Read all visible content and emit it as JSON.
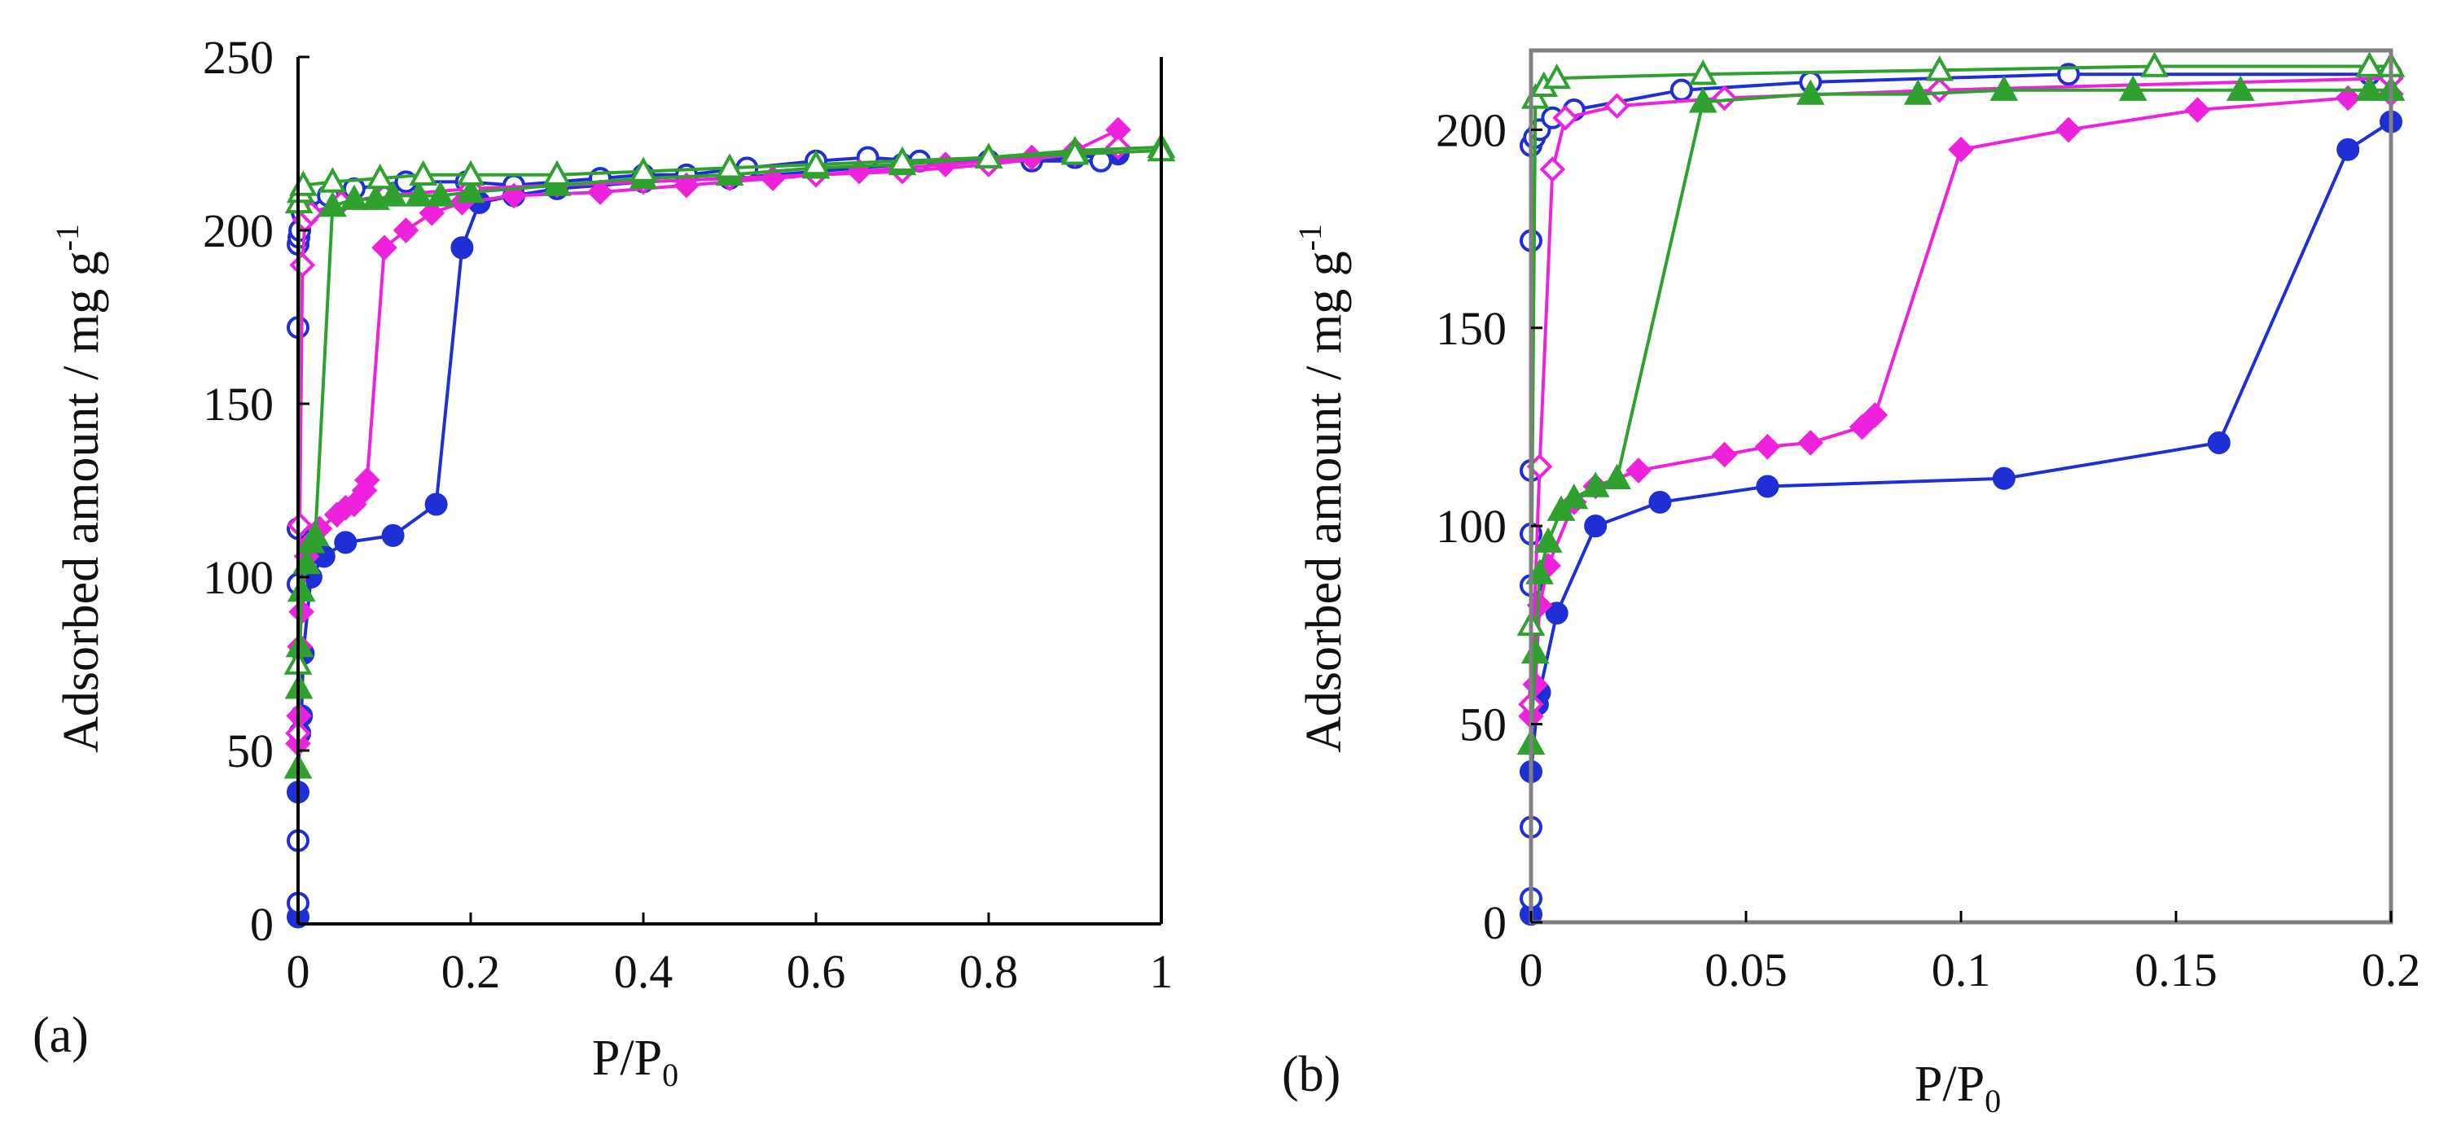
{
  "chart_data": [
    {
      "panel": "(a)",
      "type": "line",
      "ylabel": "Adsorbed amount / mg g",
      "ylabel_sup": "-1",
      "xlabel_main": "P/P",
      "xlabel_sub": "0",
      "xlim": [
        0,
        1
      ],
      "ylim": [
        0,
        250
      ],
      "xticks": [
        "0",
        "0.2",
        "0.4",
        "0.6",
        "0.8",
        "1"
      ],
      "xtick_values": [
        0,
        0.2,
        0.4,
        0.6,
        0.8,
        1
      ],
      "yticks": [
        "0",
        "50",
        "100",
        "150",
        "200",
        "250"
      ],
      "ytick_values": [
        0,
        50,
        100,
        150,
        200,
        250
      ],
      "framed": false,
      "series": [
        {
          "color": "#1f2fd6",
          "marker": "circle",
          "filled": true,
          "points": [
            [
              0,
              2
            ],
            [
              0,
              38
            ],
            [
              0.002,
              55
            ],
            [
              0.004,
              60
            ],
            [
              0.006,
              78
            ],
            [
              0.015,
              100
            ],
            [
              0.03,
              106
            ],
            [
              0.055,
              110
            ],
            [
              0.11,
              112
            ],
            [
              0.16,
              121
            ],
            [
              0.19,
              195
            ],
            [
              0.21,
              208
            ],
            [
              0.25,
              210
            ],
            [
              0.3,
              212
            ],
            [
              0.4,
              214
            ],
            [
              0.5,
              215
            ],
            [
              0.6,
              217
            ],
            [
              0.7,
              219
            ],
            [
              0.8,
              220
            ],
            [
              0.9,
              221
            ],
            [
              0.95,
              222
            ]
          ]
        },
        {
          "color": "#1f2fd6",
          "marker": "circle",
          "filled": false,
          "points": [
            [
              0,
              6
            ],
            [
              0,
              24
            ],
            [
              0,
              98
            ],
            [
              0,
              114
            ],
            [
              0,
              172
            ],
            [
              0,
              196
            ],
            [
              0.001,
              198
            ],
            [
              0.002,
              200
            ],
            [
              0.005,
              205
            ],
            [
              0.01,
              206
            ],
            [
              0.035,
              210
            ],
            [
              0.065,
              212
            ],
            [
              0.125,
              214
            ],
            [
              0.195,
              214
            ],
            [
              0.25,
              213
            ],
            [
              0.35,
              215
            ],
            [
              0.4,
              216
            ],
            [
              0.45,
              216
            ],
            [
              0.52,
              218
            ],
            [
              0.6,
              220
            ],
            [
              0.66,
              221
            ],
            [
              0.72,
              220
            ],
            [
              0.8,
              220
            ],
            [
              0.85,
              220
            ],
            [
              0.93,
              220
            ]
          ]
        },
        {
          "color": "#ee22dd",
          "marker": "diamond",
          "filled": true,
          "points": [
            [
              0,
              52
            ],
            [
              0.001,
              60
            ],
            [
              0.002,
              80
            ],
            [
              0.004,
              90
            ],
            [
              0.01,
              106
            ],
            [
              0.015,
              110
            ],
            [
              0.025,
              114
            ],
            [
              0.045,
              118
            ],
            [
              0.055,
              120
            ],
            [
              0.065,
              121
            ],
            [
              0.077,
              125
            ],
            [
              0.08,
              128
            ],
            [
              0.1,
              195
            ],
            [
              0.125,
              200
            ],
            [
              0.155,
              205
            ],
            [
              0.19,
              208
            ],
            [
              0.25,
              210
            ],
            [
              0.35,
              211
            ],
            [
              0.45,
              213
            ],
            [
              0.55,
              215
            ],
            [
              0.65,
              217
            ],
            [
              0.75,
              219
            ],
            [
              0.85,
              221
            ],
            [
              0.9,
              223
            ],
            [
              0.95,
              229
            ]
          ]
        },
        {
          "color": "#ee22dd",
          "marker": "diamond",
          "filled": false,
          "points": [
            [
              0,
              55
            ],
            [
              0.002,
              115
            ],
            [
              0.005,
              190
            ],
            [
              0.008,
              203
            ],
            [
              0.015,
              205
            ],
            [
              0.05,
              208
            ],
            [
              0.1,
              210
            ],
            [
              0.2,
              212
            ],
            [
              0.3,
              213
            ],
            [
              0.4,
              214
            ],
            [
              0.5,
              215
            ],
            [
              0.6,
              216
            ],
            [
              0.7,
              217
            ],
            [
              0.8,
              219
            ],
            [
              0.9,
              222
            ],
            [
              0.95,
              224
            ]
          ]
        },
        {
          "color": "#2fa12f",
          "marker": "triangle",
          "filled": true,
          "points": [
            [
              0,
              45
            ],
            [
              0.001,
              68
            ],
            [
              0.002,
              80
            ],
            [
              0.004,
              96
            ],
            [
              0.01,
              104
            ],
            [
              0.015,
              110
            ],
            [
              0.02,
              112
            ],
            [
              0.04,
              207
            ],
            [
              0.065,
              209
            ],
            [
              0.09,
              209
            ],
            [
              0.11,
              210
            ],
            [
              0.14,
              210
            ],
            [
              0.165,
              210
            ],
            [
              0.2,
              211
            ],
            [
              0.3,
              213
            ],
            [
              0.4,
              215
            ],
            [
              0.5,
              216
            ],
            [
              0.6,
              218
            ],
            [
              0.7,
              219
            ],
            [
              0.8,
              221
            ],
            [
              0.9,
              223
            ],
            [
              1.0,
              224
            ]
          ]
        },
        {
          "color": "#2fa12f",
          "marker": "triangle",
          "filled": false,
          "points": [
            [
              0,
              75
            ],
            [
              0.001,
              208
            ],
            [
              0.003,
              211
            ],
            [
              0.006,
              213
            ],
            [
              0.04,
              214
            ],
            [
              0.095,
              215
            ],
            [
              0.145,
              216
            ],
            [
              0.2,
              216
            ],
            [
              0.3,
              216
            ],
            [
              0.4,
              217
            ],
            [
              0.5,
              218
            ],
            [
              0.6,
              219
            ],
            [
              0.7,
              220
            ],
            [
              0.8,
              221
            ],
            [
              0.9,
              222
            ],
            [
              1.0,
              223
            ]
          ]
        }
      ]
    },
    {
      "panel": "(b)",
      "type": "line",
      "ylabel": "Adsorbed amount / mg g",
      "ylabel_sup": "-1",
      "xlabel_main": "P/P",
      "xlabel_sub": "0",
      "xlim": [
        0,
        0.2
      ],
      "ylim": [
        0,
        220
      ],
      "xticks": [
        "0",
        "0.05",
        "0.1",
        "0.15",
        "0.2"
      ],
      "xtick_values": [
        0,
        0.05,
        0.1,
        0.15,
        0.2
      ],
      "yticks": [
        "0",
        "50",
        "100",
        "150",
        "200"
      ],
      "ytick_values": [
        0,
        50,
        100,
        150,
        200
      ],
      "framed": true,
      "series": [
        {
          "color": "#1f2fd6",
          "marker": "circle",
          "filled": true,
          "points": [
            [
              0,
              2
            ],
            [
              0,
              38
            ],
            [
              0.0015,
              55
            ],
            [
              0.002,
              58
            ],
            [
              0.006,
              78
            ],
            [
              0.015,
              100
            ],
            [
              0.03,
              106
            ],
            [
              0.055,
              110
            ],
            [
              0.11,
              112
            ],
            [
              0.16,
              121
            ],
            [
              0.19,
              195
            ],
            [
              0.2,
              202
            ]
          ]
        },
        {
          "color": "#1f2fd6",
          "marker": "circle",
          "filled": false,
          "points": [
            [
              0,
              6
            ],
            [
              0,
              24
            ],
            [
              0,
              85
            ],
            [
              0,
              98
            ],
            [
              0,
              114
            ],
            [
              0,
              172
            ],
            [
              0,
              196
            ],
            [
              0.0008,
              198
            ],
            [
              0.002,
              200
            ],
            [
              0.005,
              203
            ],
            [
              0.01,
              205
            ],
            [
              0.035,
              210
            ],
            [
              0.065,
              212
            ],
            [
              0.125,
              214
            ],
            [
              0.195,
              214
            ],
            [
              0.2,
              214
            ]
          ]
        },
        {
          "color": "#ee22dd",
          "marker": "diamond",
          "filled": true,
          "points": [
            [
              0,
              52
            ],
            [
              0.001,
              60
            ],
            [
              0.002,
              80
            ],
            [
              0.004,
              90
            ],
            [
              0.01,
              106
            ],
            [
              0.015,
              110
            ],
            [
              0.025,
              114
            ],
            [
              0.045,
              118
            ],
            [
              0.055,
              120
            ],
            [
              0.065,
              121
            ],
            [
              0.077,
              125
            ],
            [
              0.08,
              128
            ],
            [
              0.1,
              195
            ],
            [
              0.125,
              200
            ],
            [
              0.155,
              205
            ],
            [
              0.19,
              208
            ],
            [
              0.2,
              209
            ]
          ]
        },
        {
          "color": "#ee22dd",
          "marker": "diamond",
          "filled": false,
          "points": [
            [
              0,
              55
            ],
            [
              0.002,
              115
            ],
            [
              0.005,
              190
            ],
            [
              0.008,
              203
            ],
            [
              0.02,
              206
            ],
            [
              0.045,
              208
            ],
            [
              0.095,
              210
            ],
            [
              0.2,
              213
            ]
          ]
        },
        {
          "color": "#2fa12f",
          "marker": "triangle",
          "filled": true,
          "points": [
            [
              0,
              45
            ],
            [
              0.001,
              68
            ],
            [
              0.002,
              88
            ],
            [
              0.004,
              96
            ],
            [
              0.007,
              104
            ],
            [
              0.01,
              107
            ],
            [
              0.015,
              110
            ],
            [
              0.02,
              112
            ],
            [
              0.04,
              207
            ],
            [
              0.065,
              209
            ],
            [
              0.09,
              209
            ],
            [
              0.11,
              210
            ],
            [
              0.14,
              210
            ],
            [
              0.165,
              210
            ],
            [
              0.195,
              210
            ],
            [
              0.2,
              210
            ]
          ]
        },
        {
          "color": "#2fa12f",
          "marker": "triangle",
          "filled": false,
          "points": [
            [
              0,
              75
            ],
            [
              0.001,
              208
            ],
            [
              0.003,
              211
            ],
            [
              0.006,
              213
            ],
            [
              0.04,
              214
            ],
            [
              0.095,
              215
            ],
            [
              0.145,
              216
            ],
            [
              0.195,
              216
            ],
            [
              0.2,
              216
            ]
          ]
        }
      ]
    }
  ]
}
